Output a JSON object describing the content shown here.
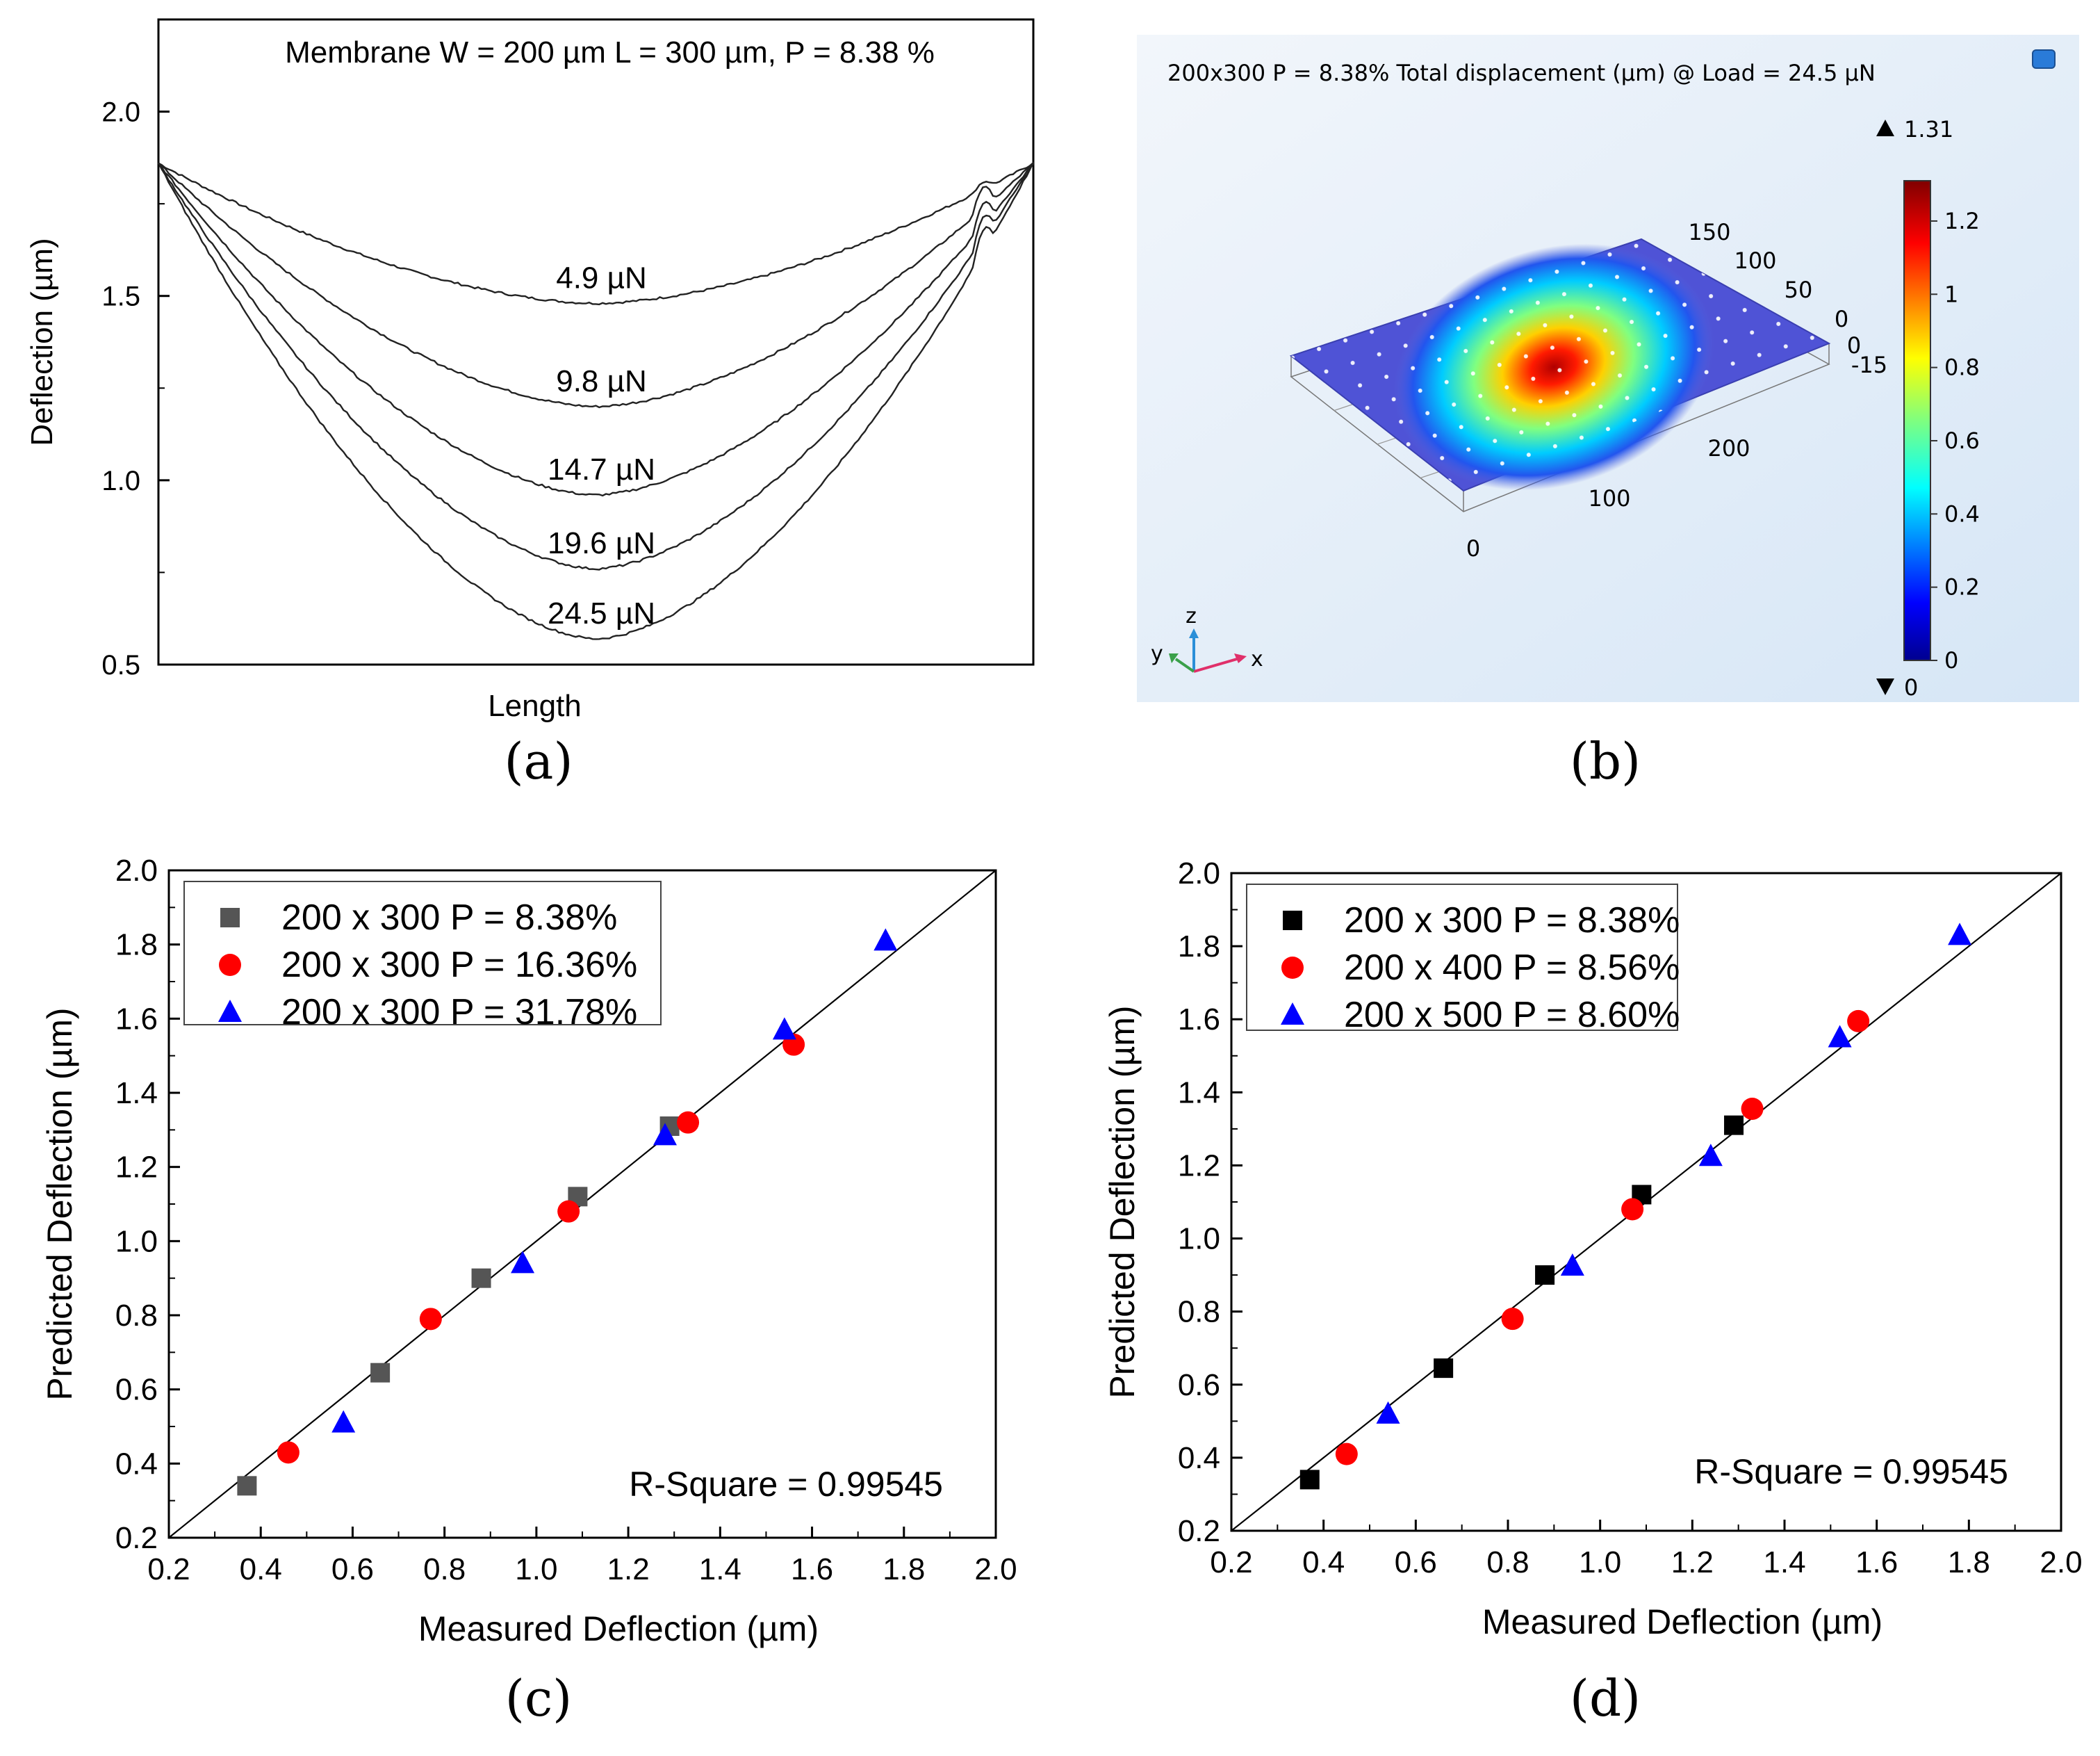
{
  "chart_data": [
    {
      "id": "a",
      "type": "line",
      "panel_label": "(a)",
      "title": "Membrane W = 200 µm L = 300 µm, P = 8.38 %",
      "xlabel": "Length",
      "ylabel": "Deflection (µm)",
      "ylim": [
        0.5,
        2.25
      ],
      "yticks": [
        "0.5",
        "1.0",
        "1.5",
        "2.0"
      ],
      "x_range": [
        0,
        1
      ],
      "series": [
        {
          "name": "4.9 µN",
          "left": 1.86,
          "right": 1.86,
          "min": 1.48
        },
        {
          "name": "9.8 µN",
          "left": 1.86,
          "right": 1.86,
          "min": 1.2
        },
        {
          "name": "14.7 µN",
          "left": 1.86,
          "right": 1.86,
          "min": 0.96
        },
        {
          "name": "19.6 µN",
          "left": 1.86,
          "right": 1.86,
          "min": 0.76
        },
        {
          "name": "24.5 µN",
          "left": 1.86,
          "right": 1.86,
          "min": 0.57
        }
      ],
      "min_position": 0.5
    },
    {
      "id": "b",
      "type": "heatmap",
      "panel_label": "(b)",
      "title": "200x300 P = 8.38% Total displacement (µm) @ Load = 24.5 µN",
      "color_max_label": "1.31",
      "color_min_label": "0",
      "colorbar_ticks": [
        "0",
        "0.2",
        "0.4",
        "0.6",
        "0.8",
        "1",
        "1.2"
      ],
      "x_ticks": [
        "0",
        "100",
        "200"
      ],
      "y_ticks": [
        "150",
        "100",
        "50",
        "0"
      ],
      "z_ticks": [
        "0",
        "-15"
      ],
      "axis_names": [
        "x",
        "y",
        "z"
      ]
    },
    {
      "id": "c",
      "type": "scatter",
      "panel_label": "(c)",
      "xlabel": "Measured Deflection (µm)",
      "ylabel": "Predicted Deflection (µm)",
      "xlim": [
        0.2,
        2.0
      ],
      "ylim": [
        0.2,
        2.0
      ],
      "ticks": [
        "0.2",
        "0.4",
        "0.6",
        "0.8",
        "1.0",
        "1.2",
        "1.4",
        "1.6",
        "1.8",
        "2.0"
      ],
      "annotation": "R-Square = 0.99545",
      "series": [
        {
          "name": "200 x 300 P = 8.38%",
          "marker": "square",
          "color": "#555555",
          "x": [
            0.37,
            0.66,
            0.88,
            1.09,
            1.29
          ],
          "y": [
            0.34,
            0.645,
            0.9,
            1.12,
            1.31
          ]
        },
        {
          "name": "200 x 300 P = 16.36%",
          "marker": "circle",
          "color": "#ff0000",
          "x": [
            0.46,
            0.77,
            1.07,
            1.33,
            1.56
          ],
          "y": [
            0.43,
            0.79,
            1.08,
            1.32,
            1.53
          ]
        },
        {
          "name": "200 x 300 P = 31.78%",
          "marker": "triangle",
          "color": "#0000ff",
          "x": [
            0.58,
            0.97,
            1.28,
            1.54,
            1.76
          ],
          "y": [
            0.51,
            0.94,
            1.285,
            1.57,
            1.81
          ]
        }
      ]
    },
    {
      "id": "d",
      "type": "scatter",
      "panel_label": "(d)",
      "xlabel": "Measured Deflection (µm)",
      "ylabel": "Predicted Deflection (µm)",
      "xlim": [
        0.2,
        2.0
      ],
      "ylim": [
        0.2,
        2.0
      ],
      "ticks": [
        "0.2",
        "0.4",
        "0.6",
        "0.8",
        "1.0",
        "1.2",
        "1.4",
        "1.6",
        "1.8",
        "2.0"
      ],
      "annotation": "R-Square = 0.99545",
      "series": [
        {
          "name": "200 x 300 P = 8.38%",
          "marker": "square",
          "color": "#000000",
          "x": [
            0.37,
            0.66,
            0.88,
            1.09,
            1.29
          ],
          "y": [
            0.34,
            0.645,
            0.9,
            1.12,
            1.31
          ]
        },
        {
          "name": "200 x 400 P = 8.56%",
          "marker": "circle",
          "color": "#ff0000",
          "x": [
            0.45,
            0.81,
            1.07,
            1.33,
            1.56
          ],
          "y": [
            0.41,
            0.78,
            1.08,
            1.355,
            1.595
          ]
        },
        {
          "name": "200 x 500 P = 8.60%",
          "marker": "triangle",
          "color": "#0000ff",
          "x": [
            0.54,
            0.94,
            1.24,
            1.52,
            1.78
          ],
          "y": [
            0.52,
            0.925,
            1.225,
            1.55,
            1.83
          ]
        }
      ]
    }
  ]
}
